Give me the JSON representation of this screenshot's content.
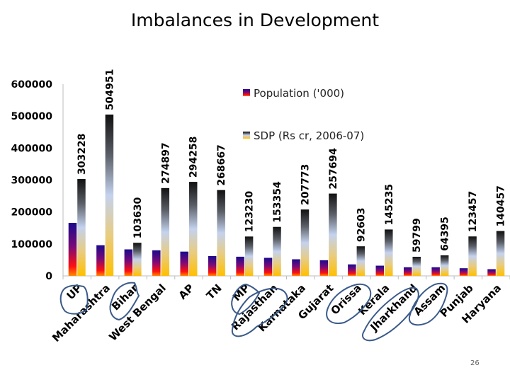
{
  "slide": {
    "title": "Imbalances in Development",
    "page_number": "26"
  },
  "chart_data": {
    "type": "bar",
    "title": "",
    "xlabel": "",
    "ylabel": "",
    "ylim": [
      0,
      600000
    ],
    "yticks": [
      0,
      100000,
      200000,
      300000,
      400000,
      500000,
      600000
    ],
    "ytick_labels": [
      "0",
      "100000",
      "200000",
      "300000",
      "400000",
      "500000",
      "600000"
    ],
    "grid": false,
    "legend_position": "top-right",
    "categories": [
      "UP",
      "Maharashtra",
      "Bihar",
      "West Bengal",
      "AP",
      "TN",
      "MP",
      "Rajasthan",
      "Karnataka",
      "Gujarat",
      "Orissa",
      "Kerala",
      "Jharkhand",
      "Assam",
      "Punjab",
      "Haryana"
    ],
    "series": [
      {
        "name": "Population ('000)",
        "values": [
          166000,
          96000,
          83000,
          80000,
          76000,
          62000,
          60000,
          56500,
          52000,
          49000,
          36000,
          32000,
          27000,
          27000,
          24000,
          21000
        ],
        "data_labels": false,
        "colors": [
          "#1a0a8c",
          "#ff1010",
          "#ff8a00"
        ]
      },
      {
        "name": "SDP (Rs cr, 2006-07)",
        "values": [
          303228,
          504951,
          103630,
          274897,
          294258,
          268667,
          123230,
          153354,
          207773,
          257694,
          92603,
          145235,
          59799,
          64395,
          123457,
          140457
        ],
        "data_labels": true,
        "colors": [
          "#111111",
          "#c0d0f0",
          "#ffc000"
        ]
      }
    ],
    "annotations": {
      "circled_categories": [
        "UP",
        "Bihar",
        "MP",
        "Rajasthan",
        "Orissa",
        "Jharkhand",
        "Assam"
      ],
      "circle_color": "#3a5a8a"
    }
  }
}
